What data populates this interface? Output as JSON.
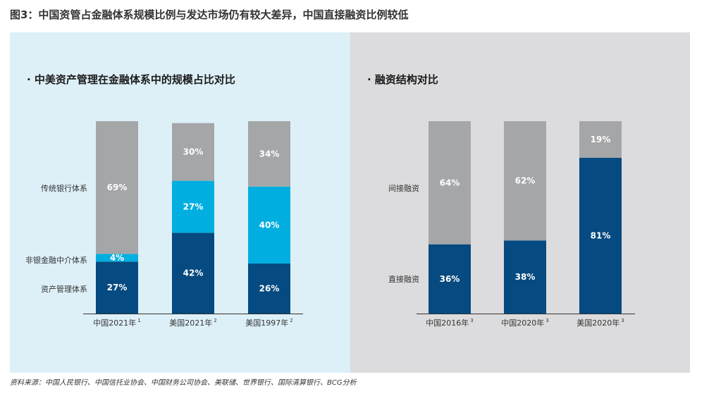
{
  "figure_title": "图3：中国资管占金融体系规模比例与发达市场仍有较大差异，中国直接融资比例较低",
  "source": "资料来源：中国人民银行、中国信托业协会、中国财务公司协会、美联储、世界银行、国际清算银行、BCG分析",
  "colors": {
    "gray": "#a5a6a8",
    "light_blue": "#00aee0",
    "dark_blue": "#054a80",
    "axis": "#333333"
  },
  "chart_data": [
    {
      "type": "bar",
      "stacked": true,
      "title": "· 中美资产管理在金融体系中的规模占比对比",
      "categories": [
        {
          "label": "中国2021年",
          "sup": "1"
        },
        {
          "label": "美国2021年",
          "sup": "2"
        },
        {
          "label": "美国1997年",
          "sup": "2"
        }
      ],
      "series": [
        {
          "name": "资产管理体系",
          "color": "dark_blue",
          "values": [
            27,
            42,
            26
          ],
          "labels": [
            "27%",
            "42%",
            "26%"
          ]
        },
        {
          "name": "非银金融中介体系",
          "color": "light_blue",
          "values": [
            4,
            27,
            40
          ],
          "labels": [
            "4%",
            "27%",
            "40%"
          ]
        },
        {
          "name": "传统银行体系",
          "color": "gray",
          "values": [
            69,
            30,
            34
          ],
          "labels": [
            "69%",
            "30%",
            "34%"
          ]
        }
      ],
      "ylim": [
        0,
        100
      ]
    },
    {
      "type": "bar",
      "stacked": true,
      "title": "· 融资结构对比",
      "categories": [
        {
          "label": "中国2016年",
          "sup": "3"
        },
        {
          "label": "中国2020年",
          "sup": "3"
        },
        {
          "label": "美国2020年",
          "sup": "3"
        }
      ],
      "series": [
        {
          "name": "直接融资",
          "color": "dark_blue",
          "values": [
            36,
            38,
            81
          ],
          "labels": [
            "36%",
            "38%",
            "81%"
          ]
        },
        {
          "name": "间接融资",
          "color": "gray",
          "values": [
            64,
            62,
            19
          ],
          "labels": [
            "64%",
            "62%",
            "19%"
          ]
        }
      ],
      "ylim": [
        0,
        100
      ]
    }
  ]
}
